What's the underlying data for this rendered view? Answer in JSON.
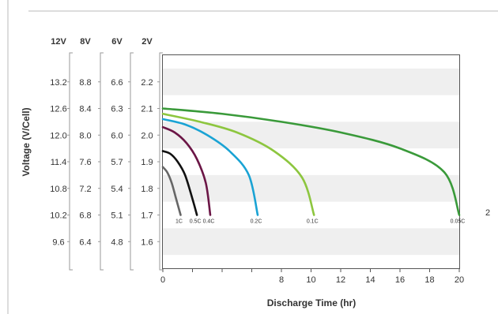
{
  "chart_data": {
    "type": "line",
    "xlabel": "Discharge Time (hr)",
    "ylabel": "Voltage (V/Cell)",
    "xlim": [
      0,
      20
    ],
    "ylim": [
      1.5,
      2.3
    ],
    "x_ticks": [
      "0",
      "",
      "",
      "",
      "8",
      "10",
      "12",
      "14",
      "16",
      "18",
      "20"
    ],
    "y_ticks": [
      "2.2",
      "2.1",
      "2.0",
      "1.9",
      "1.8",
      "1.7",
      "1.6"
    ],
    "voltage_scales": [
      {
        "label": "12V",
        "ticks": [
          "13.2",
          "12.6",
          "12.0",
          "11.4",
          "10.8",
          "10.2",
          "9.6"
        ]
      },
      {
        "label": "8V",
        "ticks": [
          "8.8",
          "8.4",
          "8.0",
          "7.6",
          "7.2",
          "6.8",
          "6.4"
        ]
      },
      {
        "label": "6V",
        "ticks": [
          "6.6",
          "6.3",
          "6.0",
          "5.7",
          "5.4",
          "5.1",
          "4.8"
        ]
      },
      {
        "label": "2V",
        "ticks": [
          "2.2",
          "2.1",
          "2.0",
          "1.9",
          "1.8",
          "1.7",
          "1.6"
        ]
      }
    ],
    "grid": "alternating horizontal bands",
    "stray_text": "2",
    "series": [
      {
        "name": "1C",
        "color": "#666666",
        "x": [
          0,
          0.3,
          0.6,
          0.9,
          1.2
        ],
        "y": [
          1.88,
          1.86,
          1.82,
          1.76,
          1.7
        ]
      },
      {
        "name": "0.5C",
        "color": "#111111",
        "x": [
          0,
          0.5,
          1.0,
          1.5,
          2.0,
          2.3
        ],
        "y": [
          1.94,
          1.93,
          1.9,
          1.85,
          1.76,
          1.7
        ]
      },
      {
        "name": "0.4C",
        "color": "#6b1646",
        "x": [
          0,
          0.8,
          1.6,
          2.3,
          2.9,
          3.2
        ],
        "y": [
          2.03,
          2.01,
          1.97,
          1.91,
          1.82,
          1.7
        ]
      },
      {
        "name": "0.2C",
        "color": "#1aa3d4",
        "x": [
          0,
          1.5,
          3.0,
          4.5,
          5.8,
          6.4
        ],
        "y": [
          2.06,
          2.04,
          2.0,
          1.94,
          1.85,
          1.7
        ]
      },
      {
        "name": "0.1C",
        "color": "#8dc63f",
        "x": [
          0,
          2.5,
          5.0,
          7.5,
          9.4,
          10.2
        ],
        "y": [
          2.08,
          2.05,
          2.01,
          1.94,
          1.84,
          1.7
        ]
      },
      {
        "name": "0.05C",
        "color": "#3a9a3a",
        "x": [
          0,
          4,
          8,
          12,
          16,
          19.0,
          20.0
        ],
        "y": [
          2.1,
          2.08,
          2.05,
          2.01,
          1.95,
          1.86,
          1.7
        ]
      }
    ]
  }
}
